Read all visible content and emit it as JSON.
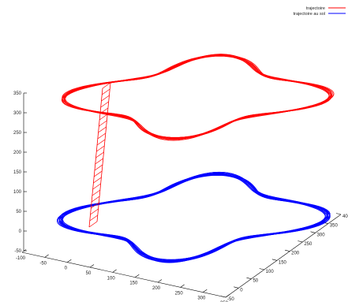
{
  "chart_data": {
    "type": "line",
    "title": "",
    "xlabel": "",
    "ylabel": "",
    "zlabel": "",
    "grid": false,
    "legend_position": "top-right",
    "x_ticks": [
      "-100",
      "-50",
      "0",
      "50",
      "100",
      "150",
      "200",
      "250",
      "300",
      "350"
    ],
    "y_ticks": [
      "-50",
      "0",
      "50",
      "100",
      "150",
      "200",
      "250",
      "300",
      "350",
      "400"
    ],
    "z_ticks": [
      "-50",
      "0",
      "50",
      "100",
      "150",
      "200",
      "250",
      "300",
      "350"
    ],
    "xlim": [
      -100,
      350
    ],
    "ylim": [
      -50,
      400
    ],
    "zlim": [
      -50,
      350
    ],
    "series": [
      {
        "name": "trajectoire",
        "color": "#ff0000",
        "altitude_approx": 300
      },
      {
        "name": "trajectoire au sol",
        "color": "#0000ff",
        "altitude_approx": 0
      }
    ]
  }
}
